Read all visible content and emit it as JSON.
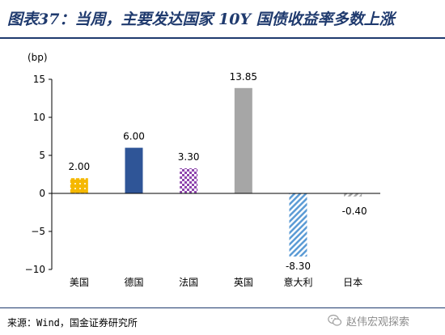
{
  "header": {
    "title": "图表37：当周，主要发达国家 10Y 国债收益率多数上涨"
  },
  "chart_data": {
    "type": "bar",
    "unit_label": "(bp)",
    "categories": [
      "美国",
      "德国",
      "法国",
      "英国",
      "意大利",
      "日本"
    ],
    "values": [
      2.0,
      6.0,
      3.3,
      13.85,
      -8.3,
      -0.4
    ],
    "value_labels": [
      "2.00",
      "6.00",
      "3.30",
      "13.85",
      "-8.30",
      "-0.40"
    ],
    "ylim": [
      -10,
      15
    ],
    "yticks": [
      -10,
      -5,
      0,
      5,
      10,
      15
    ],
    "ytick_labels": [
      "−10",
      "−5",
      "0",
      "5",
      "10",
      "15"
    ],
    "bar_colors": [
      "#f5b800",
      "#2f5597",
      "#8e44ad",
      "#a6a6a6",
      "#5b9bd5",
      "#a6a6a6"
    ],
    "bar_patterns": [
      "dots",
      "solid",
      "checker",
      "solid",
      "diagonal",
      "diagonal"
    ],
    "grid": false
  },
  "footer": {
    "source": "来源：Wind，国金证券研究所",
    "watermark": "赵伟宏观探索"
  }
}
